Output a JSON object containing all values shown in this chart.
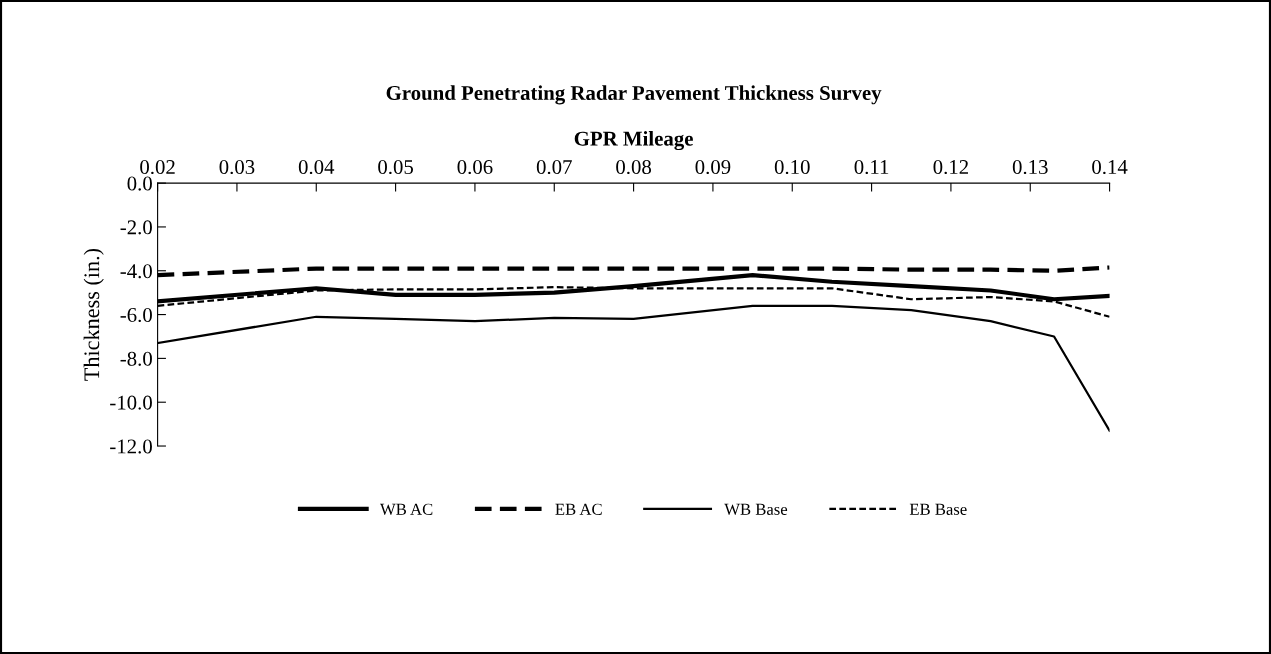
{
  "chart_data": {
    "type": "line",
    "title": "Ground Penetrating Radar Pavement Thickness Survey",
    "xlabel": "GPR Mileage",
    "ylabel": "Thickness (in.)",
    "x": [
      0.02,
      0.04,
      0.05,
      0.06,
      0.07,
      0.08,
      0.095,
      0.105,
      0.115,
      0.125,
      0.133,
      0.14
    ],
    "series": [
      {
        "name": "WB AC",
        "color": "#000000",
        "line_style": "solid",
        "values": [
          -5.4,
          -4.8,
          -5.1,
          -5.1,
          -5.0,
          -4.7,
          -4.2,
          -4.5,
          -4.7,
          -4.9,
          -5.3,
          -5.15
        ]
      },
      {
        "name": "EB AC",
        "color": "#000000",
        "line_style": "dashed",
        "values": [
          -4.2,
          -3.9,
          -3.9,
          -3.9,
          -3.9,
          -3.9,
          -3.9,
          -3.9,
          -3.95,
          -3.95,
          -4.0,
          -3.85
        ]
      },
      {
        "name": "WB Base",
        "color": "#000000",
        "line_style": "solid",
        "values": [
          -7.3,
          -6.1,
          -6.2,
          -6.3,
          -6.15,
          -6.2,
          -5.6,
          -5.6,
          -5.8,
          -6.3,
          -7.0,
          -11.3
        ]
      },
      {
        "name": "EB Base",
        "color": "#000000",
        "line_style": "dashed",
        "values": [
          -5.6,
          -4.9,
          -4.85,
          -4.85,
          -4.75,
          -4.8,
          -4.8,
          -4.8,
          -5.3,
          -5.2,
          -5.4,
          -6.1
        ]
      }
    ],
    "xlim": [
      0.02,
      0.14
    ],
    "xticks": [
      {
        "value": 0.02,
        "label": "0.02"
      },
      {
        "value": 0.03,
        "label": "0.03"
      },
      {
        "value": 0.04,
        "label": "0.04"
      },
      {
        "value": 0.05,
        "label": "0.05"
      },
      {
        "value": 0.06,
        "label": "0.06"
      },
      {
        "value": 0.07,
        "label": "0.07"
      },
      {
        "value": 0.08,
        "label": "0.08"
      },
      {
        "value": 0.09,
        "label": "0.09"
      },
      {
        "value": 0.1,
        "label": "0.10"
      },
      {
        "value": 0.11,
        "label": "0.11"
      },
      {
        "value": 0.12,
        "label": "0.12"
      },
      {
        "value": 0.13,
        "label": "0.13"
      },
      {
        "value": 0.14,
        "label": "0.14"
      }
    ],
    "ylim": [
      -12,
      0
    ],
    "yticks": [
      {
        "value": 0,
        "label": "0.0"
      },
      {
        "value": -2,
        "label": "-2.0"
      },
      {
        "value": -4,
        "label": "-4.0"
      },
      {
        "value": -6,
        "label": "-6.0"
      },
      {
        "value": -8,
        "label": "-8.0"
      },
      {
        "value": -10,
        "label": "-10.0"
      },
      {
        "value": -12,
        "label": "-12.0"
      }
    ],
    "grid": false,
    "legend": "bottom",
    "marker": "none"
  }
}
